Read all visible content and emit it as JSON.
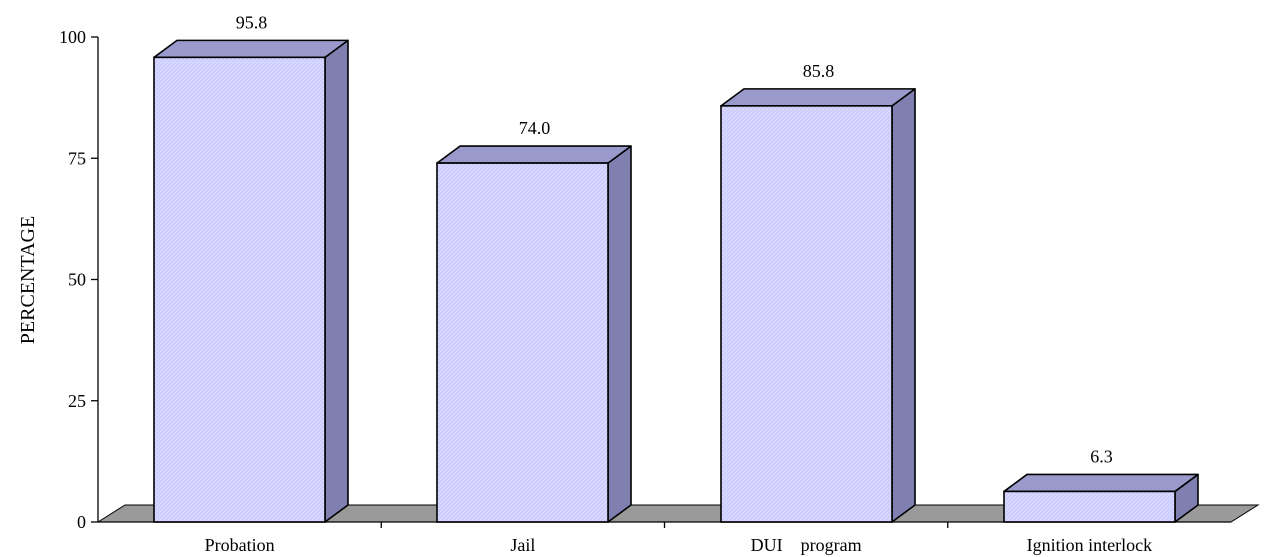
{
  "chart_data": {
    "type": "bar",
    "categories": [
      "Probation",
      "Jail",
      "DUI    program",
      "Ignition interlock"
    ],
    "values": [
      95.8,
      74.0,
      85.8,
      6.3
    ],
    "value_labels": [
      "95.8",
      "74.0",
      "85.8",
      "6.3"
    ],
    "title": "",
    "xlabel": "",
    "ylabel": "PERCENTAGE",
    "ylim": [
      0,
      100
    ],
    "yticks": [
      "0",
      "25",
      "50",
      "75",
      "100"
    ],
    "grid": false,
    "style": "3d",
    "colors": {
      "bar_front": "#ccccff",
      "bar_top": "#9999cc",
      "bar_side": "#8080b0",
      "floor": "#9a9a9a",
      "outline": "#000000"
    }
  }
}
